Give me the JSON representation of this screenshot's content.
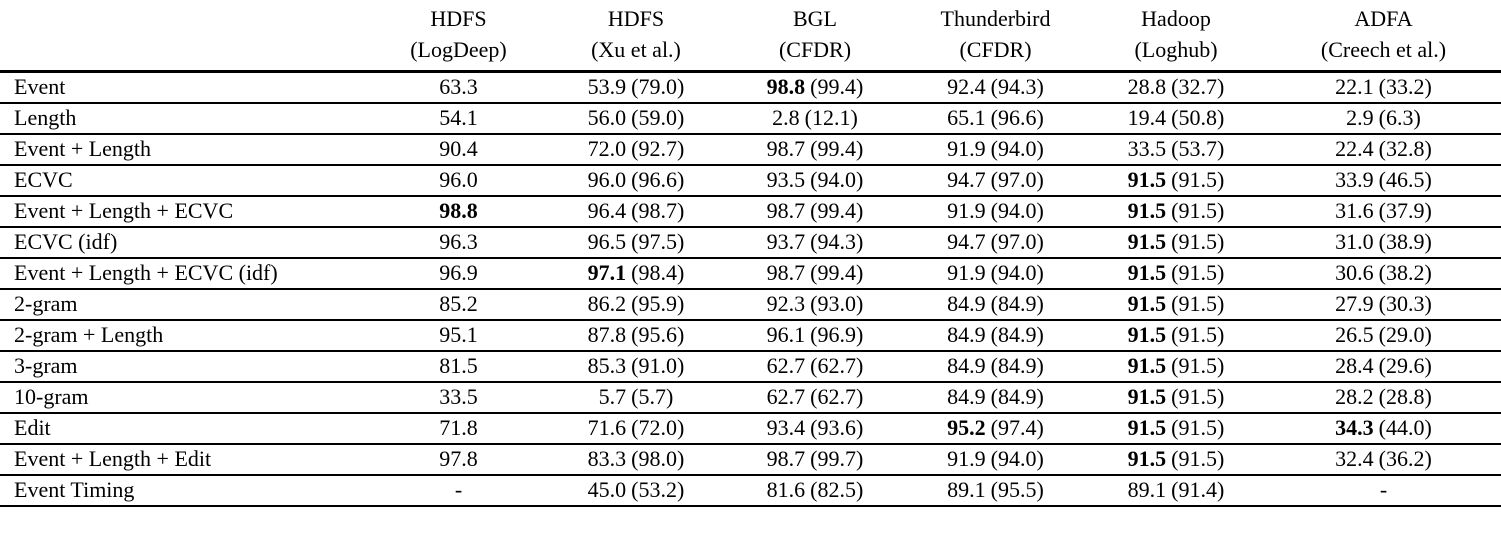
{
  "colors": {
    "text": "#000000",
    "background": "#ffffff",
    "rule": "#000000"
  },
  "table": {
    "header": {
      "corner": "",
      "columns": [
        {
          "dataset": "HDFS",
          "source": "(LogDeep)"
        },
        {
          "dataset": "HDFS",
          "source": "(Xu et al.)"
        },
        {
          "dataset": "BGL",
          "source": "(CFDR)"
        },
        {
          "dataset": "Thunderbird",
          "source": "(CFDR)"
        },
        {
          "dataset": "Hadoop",
          "source": "(Loghub)"
        },
        {
          "dataset": "ADFA",
          "source": "(Creech et al.)"
        }
      ]
    },
    "rows": [
      {
        "label": "Event",
        "cells": [
          {
            "value": "63.3",
            "paren": "",
            "bold": false
          },
          {
            "value": "53.9",
            "paren": "(79.0)",
            "bold": false
          },
          {
            "value": "98.8",
            "paren": "(99.4)",
            "bold": true
          },
          {
            "value": "92.4",
            "paren": "(94.3)",
            "bold": false
          },
          {
            "value": "28.8",
            "paren": "(32.7)",
            "bold": false
          },
          {
            "value": "22.1",
            "paren": "(33.2)",
            "bold": false
          }
        ]
      },
      {
        "label": "Length",
        "cells": [
          {
            "value": "54.1",
            "paren": "",
            "bold": false
          },
          {
            "value": "56.0",
            "paren": "(59.0)",
            "bold": false
          },
          {
            "value": "2.8",
            "paren": "(12.1)",
            "bold": false
          },
          {
            "value": "65.1",
            "paren": "(96.6)",
            "bold": false
          },
          {
            "value": "19.4",
            "paren": "(50.8)",
            "bold": false
          },
          {
            "value": "2.9",
            "paren": "(6.3)",
            "bold": false
          }
        ]
      },
      {
        "label": "Event + Length",
        "cells": [
          {
            "value": "90.4",
            "paren": "",
            "bold": false
          },
          {
            "value": "72.0",
            "paren": "(92.7)",
            "bold": false
          },
          {
            "value": "98.7",
            "paren": "(99.4)",
            "bold": false
          },
          {
            "value": "91.9",
            "paren": "(94.0)",
            "bold": false
          },
          {
            "value": "33.5",
            "paren": "(53.7)",
            "bold": false
          },
          {
            "value": "22.4",
            "paren": "(32.8)",
            "bold": false
          }
        ]
      },
      {
        "label": "ECVC",
        "cells": [
          {
            "value": "96.0",
            "paren": "",
            "bold": false
          },
          {
            "value": "96.0",
            "paren": "(96.6)",
            "bold": false
          },
          {
            "value": "93.5",
            "paren": "(94.0)",
            "bold": false
          },
          {
            "value": "94.7",
            "paren": "(97.0)",
            "bold": false
          },
          {
            "value": "91.5",
            "paren": "(91.5)",
            "bold": true
          },
          {
            "value": "33.9",
            "paren": "(46.5)",
            "bold": false
          }
        ]
      },
      {
        "label": "Event + Length + ECVC",
        "cells": [
          {
            "value": "98.8",
            "paren": "",
            "bold": true
          },
          {
            "value": "96.4",
            "paren": "(98.7)",
            "bold": false
          },
          {
            "value": "98.7",
            "paren": "(99.4)",
            "bold": false
          },
          {
            "value": "91.9",
            "paren": "(94.0)",
            "bold": false
          },
          {
            "value": "91.5",
            "paren": "(91.5)",
            "bold": true
          },
          {
            "value": "31.6",
            "paren": "(37.9)",
            "bold": false
          }
        ]
      },
      {
        "label": "ECVC (idf)",
        "cells": [
          {
            "value": "96.3",
            "paren": "",
            "bold": false
          },
          {
            "value": "96.5",
            "paren": "(97.5)",
            "bold": false
          },
          {
            "value": "93.7",
            "paren": "(94.3)",
            "bold": false
          },
          {
            "value": "94.7",
            "paren": "(97.0)",
            "bold": false
          },
          {
            "value": "91.5",
            "paren": "(91.5)",
            "bold": true
          },
          {
            "value": "31.0",
            "paren": "(38.9)",
            "bold": false
          }
        ]
      },
      {
        "label": "Event + Length + ECVC (idf)",
        "cells": [
          {
            "value": "96.9",
            "paren": "",
            "bold": false
          },
          {
            "value": "97.1",
            "paren": "(98.4)",
            "bold": true
          },
          {
            "value": "98.7",
            "paren": "(99.4)",
            "bold": false
          },
          {
            "value": "91.9",
            "paren": "(94.0)",
            "bold": false
          },
          {
            "value": "91.5",
            "paren": "(91.5)",
            "bold": true
          },
          {
            "value": "30.6",
            "paren": "(38.2)",
            "bold": false
          }
        ]
      },
      {
        "label": "2-gram",
        "cells": [
          {
            "value": "85.2",
            "paren": "",
            "bold": false
          },
          {
            "value": "86.2",
            "paren": "(95.9)",
            "bold": false
          },
          {
            "value": "92.3",
            "paren": "(93.0)",
            "bold": false
          },
          {
            "value": "84.9",
            "paren": "(84.9)",
            "bold": false
          },
          {
            "value": "91.5",
            "paren": "(91.5)",
            "bold": true
          },
          {
            "value": "27.9",
            "paren": "(30.3)",
            "bold": false
          }
        ]
      },
      {
        "label": "2-gram + Length",
        "cells": [
          {
            "value": "95.1",
            "paren": "",
            "bold": false
          },
          {
            "value": "87.8",
            "paren": "(95.6)",
            "bold": false
          },
          {
            "value": "96.1",
            "paren": "(96.9)",
            "bold": false
          },
          {
            "value": "84.9",
            "paren": "(84.9)",
            "bold": false
          },
          {
            "value": "91.5",
            "paren": "(91.5)",
            "bold": true
          },
          {
            "value": "26.5",
            "paren": "(29.0)",
            "bold": false
          }
        ]
      },
      {
        "label": "3-gram",
        "cells": [
          {
            "value": "81.5",
            "paren": "",
            "bold": false
          },
          {
            "value": "85.3",
            "paren": "(91.0)",
            "bold": false
          },
          {
            "value": "62.7",
            "paren": "(62.7)",
            "bold": false
          },
          {
            "value": "84.9",
            "paren": "(84.9)",
            "bold": false
          },
          {
            "value": "91.5",
            "paren": "(91.5)",
            "bold": true
          },
          {
            "value": "28.4",
            "paren": "(29.6)",
            "bold": false
          }
        ]
      },
      {
        "label": "10-gram",
        "cells": [
          {
            "value": "33.5",
            "paren": "",
            "bold": false
          },
          {
            "value": "5.7",
            "paren": "(5.7)",
            "bold": false
          },
          {
            "value": "62.7",
            "paren": "(62.7)",
            "bold": false
          },
          {
            "value": "84.9",
            "paren": "(84.9)",
            "bold": false
          },
          {
            "value": "91.5",
            "paren": "(91.5)",
            "bold": true
          },
          {
            "value": "28.2",
            "paren": "(28.8)",
            "bold": false
          }
        ]
      },
      {
        "label": "Edit",
        "cells": [
          {
            "value": "71.8",
            "paren": "",
            "bold": false
          },
          {
            "value": "71.6",
            "paren": "(72.0)",
            "bold": false
          },
          {
            "value": "93.4",
            "paren": "(93.6)",
            "bold": false
          },
          {
            "value": "95.2",
            "paren": "(97.4)",
            "bold": true
          },
          {
            "value": "91.5",
            "paren": "(91.5)",
            "bold": true
          },
          {
            "value": "34.3",
            "paren": "(44.0)",
            "bold": true
          }
        ]
      },
      {
        "label": "Event + Length + Edit",
        "cells": [
          {
            "value": "97.8",
            "paren": "",
            "bold": false
          },
          {
            "value": "83.3",
            "paren": "(98.0)",
            "bold": false
          },
          {
            "value": "98.7",
            "paren": "(99.7)",
            "bold": false
          },
          {
            "value": "91.9",
            "paren": "(94.0)",
            "bold": false
          },
          {
            "value": "91.5",
            "paren": "(91.5)",
            "bold": true
          },
          {
            "value": "32.4",
            "paren": "(36.2)",
            "bold": false
          }
        ]
      },
      {
        "label": "Event Timing",
        "cells": [
          {
            "value": "-",
            "paren": "",
            "bold": false
          },
          {
            "value": "45.0",
            "paren": "(53.2)",
            "bold": false
          },
          {
            "value": "81.6",
            "paren": "(82.5)",
            "bold": false
          },
          {
            "value": "89.1",
            "paren": "(95.5)",
            "bold": false
          },
          {
            "value": "89.1",
            "paren": "(91.4)",
            "bold": false
          },
          {
            "value": "-",
            "paren": "",
            "bold": false
          }
        ]
      }
    ]
  }
}
